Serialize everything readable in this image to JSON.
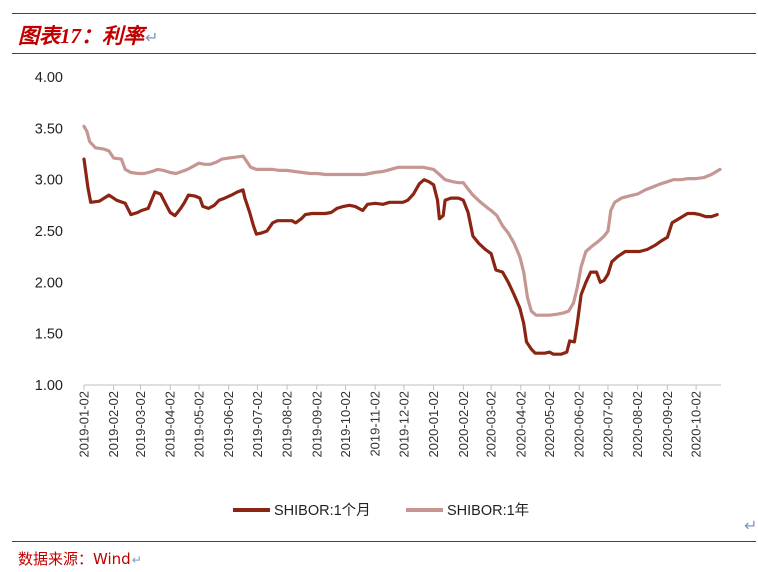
{
  "figure": {
    "title": "图表17：利率",
    "return_mark": "↵",
    "corner_arrow": "↵"
  },
  "source": {
    "text": "数据来源：Wind",
    "return_mark": "↵"
  },
  "colors": {
    "frame": "#a31c1c",
    "title": "#c00000",
    "series_1m": "#8b2413",
    "series_1y": "#c69692"
  },
  "chart_data": {
    "type": "line",
    "title": "",
    "xlabel": "",
    "ylabel": "",
    "ylim": [
      1.0,
      4.0
    ],
    "y_ticks": [
      "1.00",
      "1.50",
      "2.00",
      "2.50",
      "3.00",
      "3.50",
      "4.00"
    ],
    "x_ticks": [
      "2019-01-02",
      "2019-02-02",
      "2019-03-02",
      "2019-04-02",
      "2019-05-02",
      "2019-06-02",
      "2019-07-02",
      "2019-08-02",
      "2019-09-02",
      "2019-10-02",
      "2019-11-02",
      "2019-12-02",
      "2020-01-02",
      "2020-02-02",
      "2020-03-02",
      "2020-04-02",
      "2020-05-02",
      "2020-06-02",
      "2020-07-02",
      "2020-08-02",
      "2020-09-02",
      "2020-10-02"
    ],
    "xlim": [
      "2019-01-02",
      "2020-10-28"
    ],
    "grid": false,
    "legend_position": "bottom",
    "series": [
      {
        "name": "SHIBOR:1个月",
        "color": "#8b2413",
        "points": [
          [
            "2019-01-02",
            3.2
          ],
          [
            "2019-01-06",
            2.93
          ],
          [
            "2019-01-09",
            2.78
          ],
          [
            "2019-01-18",
            2.79
          ],
          [
            "2019-01-28",
            2.85
          ],
          [
            "2019-02-05",
            2.8
          ],
          [
            "2019-02-14",
            2.77
          ],
          [
            "2019-02-20",
            2.66
          ],
          [
            "2019-02-27",
            2.68
          ],
          [
            "2019-03-03",
            2.7
          ],
          [
            "2019-03-10",
            2.72
          ],
          [
            "2019-03-17",
            2.88
          ],
          [
            "2019-03-23",
            2.86
          ],
          [
            "2019-03-29",
            2.75
          ],
          [
            "2019-04-02",
            2.68
          ],
          [
            "2019-04-07",
            2.65
          ],
          [
            "2019-04-13",
            2.72
          ],
          [
            "2019-04-17",
            2.78
          ],
          [
            "2019-04-21",
            2.85
          ],
          [
            "2019-04-28",
            2.84
          ],
          [
            "2019-05-03",
            2.82
          ],
          [
            "2019-05-06",
            2.74
          ],
          [
            "2019-05-12",
            2.72
          ],
          [
            "2019-05-18",
            2.75
          ],
          [
            "2019-05-23",
            2.8
          ],
          [
            "2019-05-29",
            2.82
          ],
          [
            "2019-06-05",
            2.85
          ],
          [
            "2019-06-11",
            2.88
          ],
          [
            "2019-06-17",
            2.9
          ],
          [
            "2019-06-19",
            2.82
          ],
          [
            "2019-06-24",
            2.68
          ],
          [
            "2019-06-28",
            2.55
          ],
          [
            "2019-07-01",
            2.47
          ],
          [
            "2019-07-06",
            2.48
          ],
          [
            "2019-07-12",
            2.5
          ],
          [
            "2019-07-18",
            2.58
          ],
          [
            "2019-07-23",
            2.6
          ],
          [
            "2019-08-02",
            2.6
          ],
          [
            "2019-08-07",
            2.6
          ],
          [
            "2019-08-11",
            2.58
          ],
          [
            "2019-08-17",
            2.62
          ],
          [
            "2019-08-21",
            2.66
          ],
          [
            "2019-08-28",
            2.67
          ],
          [
            "2019-09-03",
            2.67
          ],
          [
            "2019-09-11",
            2.67
          ],
          [
            "2019-09-17",
            2.68
          ],
          [
            "2019-09-23",
            2.72
          ],
          [
            "2019-09-30",
            2.74
          ],
          [
            "2019-10-06",
            2.75
          ],
          [
            "2019-10-12",
            2.74
          ],
          [
            "2019-10-16",
            2.72
          ],
          [
            "2019-10-20",
            2.7
          ],
          [
            "2019-10-25",
            2.76
          ],
          [
            "2019-11-02",
            2.77
          ],
          [
            "2019-11-10",
            2.76
          ],
          [
            "2019-11-17",
            2.78
          ],
          [
            "2019-11-23",
            2.78
          ],
          [
            "2019-12-01",
            2.78
          ],
          [
            "2019-12-06",
            2.8
          ],
          [
            "2019-12-12",
            2.86
          ],
          [
            "2019-12-18",
            2.96
          ],
          [
            "2019-12-23",
            3.0
          ],
          [
            "2019-12-28",
            2.98
          ],
          [
            "2020-01-02",
            2.95
          ],
          [
            "2020-01-06",
            2.8
          ],
          [
            "2020-01-08",
            2.62
          ],
          [
            "2020-01-12",
            2.65
          ],
          [
            "2020-01-14",
            2.8
          ],
          [
            "2020-01-20",
            2.82
          ],
          [
            "2020-01-28",
            2.82
          ],
          [
            "2020-02-02",
            2.8
          ],
          [
            "2020-02-07",
            2.68
          ],
          [
            "2020-02-12",
            2.45
          ],
          [
            "2020-02-18",
            2.38
          ],
          [
            "2020-02-25",
            2.32
          ],
          [
            "2020-03-02",
            2.28
          ],
          [
            "2020-03-07",
            2.12
          ],
          [
            "2020-03-14",
            2.1
          ],
          [
            "2020-03-20",
            2.0
          ],
          [
            "2020-03-26",
            1.88
          ],
          [
            "2020-04-01",
            1.75
          ],
          [
            "2020-04-05",
            1.6
          ],
          [
            "2020-04-08",
            1.42
          ],
          [
            "2020-04-13",
            1.35
          ],
          [
            "2020-04-17",
            1.31
          ],
          [
            "2020-04-27",
            1.31
          ],
          [
            "2020-05-02",
            1.32
          ],
          [
            "2020-05-06",
            1.3
          ],
          [
            "2020-05-14",
            1.3
          ],
          [
            "2020-05-20",
            1.32
          ],
          [
            "2020-05-23",
            1.43
          ],
          [
            "2020-05-28",
            1.42
          ],
          [
            "2020-05-31",
            1.6
          ],
          [
            "2020-06-04",
            1.88
          ],
          [
            "2020-06-09",
            2.0
          ],
          [
            "2020-06-14",
            2.1
          ],
          [
            "2020-06-20",
            2.1
          ],
          [
            "2020-06-24",
            2.0
          ],
          [
            "2020-06-28",
            2.02
          ],
          [
            "2020-07-02",
            2.08
          ],
          [
            "2020-07-06",
            2.2
          ],
          [
            "2020-07-12",
            2.25
          ],
          [
            "2020-07-20",
            2.3
          ],
          [
            "2020-07-28",
            2.3
          ],
          [
            "2020-08-04",
            2.3
          ],
          [
            "2020-08-12",
            2.32
          ],
          [
            "2020-08-20",
            2.36
          ],
          [
            "2020-08-26",
            2.4
          ],
          [
            "2020-09-02",
            2.44
          ],
          [
            "2020-09-07",
            2.58
          ],
          [
            "2020-09-14",
            2.62
          ],
          [
            "2020-09-23",
            2.67
          ],
          [
            "2020-09-30",
            2.67
          ],
          [
            "2020-10-06",
            2.66
          ],
          [
            "2020-10-12",
            2.64
          ],
          [
            "2020-10-18",
            2.64
          ],
          [
            "2020-10-24",
            2.66
          ]
        ]
      },
      {
        "name": "SHIBOR:1年",
        "color": "#c69692",
        "points": [
          [
            "2019-01-02",
            3.52
          ],
          [
            "2019-01-05",
            3.47
          ],
          [
            "2019-01-08",
            3.37
          ],
          [
            "2019-01-14",
            3.31
          ],
          [
            "2019-01-22",
            3.3
          ],
          [
            "2019-01-28",
            3.28
          ],
          [
            "2019-02-02",
            3.21
          ],
          [
            "2019-02-10",
            3.2
          ],
          [
            "2019-02-14",
            3.1
          ],
          [
            "2019-02-20",
            3.07
          ],
          [
            "2019-02-28",
            3.06
          ],
          [
            "2019-03-06",
            3.06
          ],
          [
            "2019-03-14",
            3.08
          ],
          [
            "2019-03-20",
            3.1
          ],
          [
            "2019-03-26",
            3.09
          ],
          [
            "2019-04-02",
            3.07
          ],
          [
            "2019-04-08",
            3.06
          ],
          [
            "2019-04-14",
            3.08
          ],
          [
            "2019-04-20",
            3.1
          ],
          [
            "2019-04-26",
            3.13
          ],
          [
            "2019-05-02",
            3.16
          ],
          [
            "2019-05-08",
            3.15
          ],
          [
            "2019-05-14",
            3.15
          ],
          [
            "2019-05-20",
            3.17
          ],
          [
            "2019-05-26",
            3.2
          ],
          [
            "2019-06-02",
            3.21
          ],
          [
            "2019-06-10",
            3.22
          ],
          [
            "2019-06-17",
            3.23
          ],
          [
            "2019-06-20",
            3.19
          ],
          [
            "2019-06-25",
            3.12
          ],
          [
            "2019-07-01",
            3.1
          ],
          [
            "2019-07-08",
            3.1
          ],
          [
            "2019-07-18",
            3.1
          ],
          [
            "2019-07-25",
            3.09
          ],
          [
            "2019-08-02",
            3.09
          ],
          [
            "2019-08-10",
            3.08
          ],
          [
            "2019-08-18",
            3.07
          ],
          [
            "2019-08-26",
            3.06
          ],
          [
            "2019-09-02",
            3.06
          ],
          [
            "2019-09-12",
            3.05
          ],
          [
            "2019-09-22",
            3.05
          ],
          [
            "2019-10-02",
            3.05
          ],
          [
            "2019-10-12",
            3.05
          ],
          [
            "2019-10-22",
            3.05
          ],
          [
            "2019-11-01",
            3.07
          ],
          [
            "2019-11-10",
            3.08
          ],
          [
            "2019-11-18",
            3.1
          ],
          [
            "2019-11-26",
            3.12
          ],
          [
            "2019-12-02",
            3.12
          ],
          [
            "2019-12-12",
            3.12
          ],
          [
            "2019-12-22",
            3.12
          ],
          [
            "2020-01-02",
            3.1
          ],
          [
            "2020-01-08",
            3.05
          ],
          [
            "2020-01-14",
            3.0
          ],
          [
            "2020-01-22",
            2.98
          ],
          [
            "2020-01-28",
            2.97
          ],
          [
            "2020-02-02",
            2.97
          ],
          [
            "2020-02-06",
            2.92
          ],
          [
            "2020-02-12",
            2.85
          ],
          [
            "2020-02-20",
            2.78
          ],
          [
            "2020-02-28",
            2.72
          ],
          [
            "2020-03-02",
            2.7
          ],
          [
            "2020-03-08",
            2.65
          ],
          [
            "2020-03-14",
            2.55
          ],
          [
            "2020-03-20",
            2.48
          ],
          [
            "2020-03-26",
            2.38
          ],
          [
            "2020-04-01",
            2.25
          ],
          [
            "2020-04-05",
            2.1
          ],
          [
            "2020-04-09",
            1.85
          ],
          [
            "2020-04-13",
            1.72
          ],
          [
            "2020-04-18",
            1.68
          ],
          [
            "2020-04-26",
            1.68
          ],
          [
            "2020-05-02",
            1.68
          ],
          [
            "2020-05-10",
            1.69
          ],
          [
            "2020-05-16",
            1.7
          ],
          [
            "2020-05-22",
            1.72
          ],
          [
            "2020-05-27",
            1.8
          ],
          [
            "2020-05-31",
            1.95
          ],
          [
            "2020-06-04",
            2.15
          ],
          [
            "2020-06-09",
            2.3
          ],
          [
            "2020-06-15",
            2.35
          ],
          [
            "2020-06-22",
            2.4
          ],
          [
            "2020-06-28",
            2.45
          ],
          [
            "2020-07-02",
            2.5
          ],
          [
            "2020-07-05",
            2.7
          ],
          [
            "2020-07-09",
            2.78
          ],
          [
            "2020-07-16",
            2.82
          ],
          [
            "2020-07-24",
            2.84
          ],
          [
            "2020-08-02",
            2.86
          ],
          [
            "2020-08-10",
            2.9
          ],
          [
            "2020-08-18",
            2.93
          ],
          [
            "2020-08-26",
            2.96
          ],
          [
            "2020-09-02",
            2.98
          ],
          [
            "2020-09-08",
            3.0
          ],
          [
            "2020-09-16",
            3.0
          ],
          [
            "2020-09-24",
            3.01
          ],
          [
            "2020-10-02",
            3.01
          ],
          [
            "2020-10-10",
            3.02
          ],
          [
            "2020-10-18",
            3.05
          ],
          [
            "2020-10-27",
            3.1
          ]
        ]
      }
    ]
  }
}
